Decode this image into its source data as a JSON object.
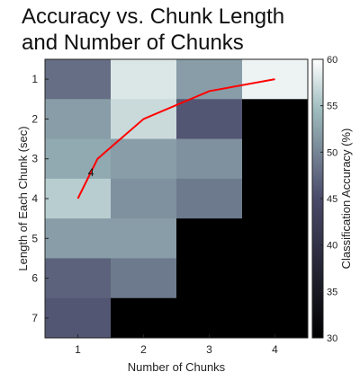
{
  "chart_data": {
    "type": "heatmap",
    "title": [
      "Accuracy vs. Chunk Length",
      "and Number of Chunks"
    ],
    "xlabel": "Number of Chunks",
    "ylabel": "Length of Each Chunk (sec)",
    "x_categories": [
      "1",
      "2",
      "3",
      "4"
    ],
    "y_categories": [
      "1",
      "2",
      "3",
      "4",
      "5",
      "6",
      "7"
    ],
    "values": [
      [
        48,
        58,
        52,
        59
      ],
      [
        52,
        57,
        46,
        null
      ],
      [
        53,
        52,
        51,
        null
      ],
      [
        56,
        51,
        49,
        null
      ],
      [
        52,
        52,
        null,
        null
      ],
      [
        47,
        49,
        null,
        null
      ],
      [
        46,
        null,
        null,
        null
      ]
    ],
    "colorbar": {
      "label": "Classification Accuracy (%)",
      "min": 30,
      "max": 60,
      "ticks": [
        30,
        35,
        40,
        45,
        50,
        55,
        60
      ]
    },
    "line": {
      "color": "#ff0000",
      "points": [
        [
          1,
          4
        ],
        [
          1.3,
          3
        ],
        [
          2,
          2
        ],
        [
          3,
          1.3
        ],
        [
          4,
          1
        ]
      ]
    },
    "annotation": {
      "text": "4",
      "x": 1.2,
      "y": 3.35
    }
  }
}
